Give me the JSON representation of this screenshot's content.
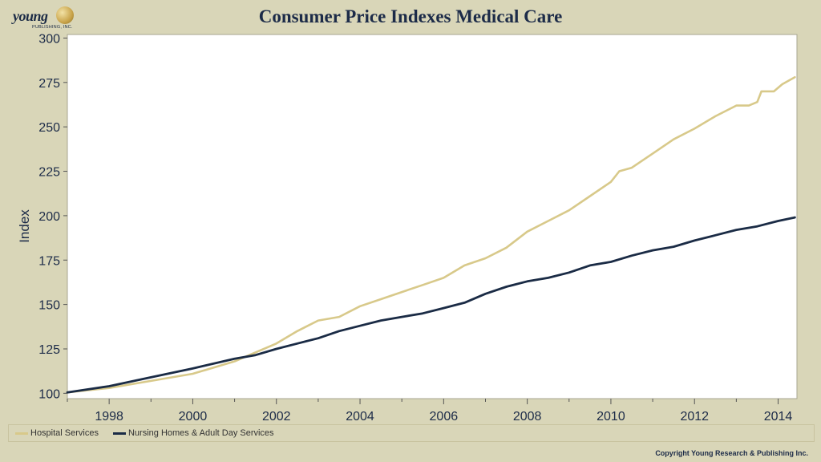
{
  "header": {
    "logo_text": "young",
    "logo_sub": "PUBLISHING, INC.",
    "title": "Consumer Price Indexes Medical Care",
    "copyright": "Copyright Young Research & Publishing Inc."
  },
  "chart_data": {
    "type": "line",
    "title": "Consumer Price Indexes Medical Care",
    "xlabel": "",
    "ylabel": "Index",
    "xlim": [
      1997.0,
      2014.45
    ],
    "ylim": [
      97,
      302
    ],
    "yticks": [
      100,
      125,
      150,
      175,
      200,
      225,
      250,
      275,
      300
    ],
    "xticks": [
      1998,
      2000,
      2002,
      2004,
      2006,
      2008,
      2010,
      2012,
      2014
    ],
    "legend": "bottom",
    "grid": false,
    "series": [
      {
        "name": "Hospital Services",
        "color": "#d8c98a",
        "x": [
          1997.0,
          1998.0,
          1999.0,
          2000.0,
          2001.0,
          2002.0,
          2002.5,
          2003.0,
          2003.5,
          2004.0,
          2004.5,
          2005.0,
          2005.5,
          2006.0,
          2006.5,
          2007.0,
          2007.5,
          2008.0,
          2008.5,
          2009.0,
          2009.5,
          2010.0,
          2010.2,
          2010.5,
          2011.0,
          2011.5,
          2012.0,
          2012.5,
          2013.0,
          2013.3,
          2013.5,
          2013.6,
          2013.7,
          2013.9,
          2014.1,
          2014.4
        ],
        "y": [
          100.5,
          103,
          107,
          111,
          118,
          128,
          135,
          141,
          143,
          149,
          153,
          157,
          161,
          165,
          172,
          176,
          182,
          191,
          197,
          203,
          211,
          219,
          225,
          227,
          235,
          243,
          249,
          256,
          262,
          262,
          264,
          270,
          270,
          270,
          274,
          278
        ]
      },
      {
        "name": "Nursing Homes & Adult Day Services",
        "color": "#1a2b45",
        "x": [
          1997.0,
          1998.0,
          1999.0,
          2000.0,
          2001.0,
          2001.5,
          2002.0,
          2002.5,
          2003.0,
          2003.5,
          2004.0,
          2004.5,
          2005.0,
          2005.5,
          2006.0,
          2006.5,
          2007.0,
          2007.5,
          2008.0,
          2008.5,
          2009.0,
          2009.5,
          2010.0,
          2010.5,
          2011.0,
          2011.5,
          2012.0,
          2012.5,
          2013.0,
          2013.5,
          2014.0,
          2014.4
        ],
        "y": [
          100.5,
          104,
          109,
          114,
          119.5,
          121.5,
          125,
          128,
          131,
          135,
          138,
          141,
          143,
          145,
          148,
          151,
          156,
          160,
          163,
          165,
          168,
          172,
          174,
          177.5,
          180.5,
          182.5,
          186,
          189,
          192,
          194,
          197,
          199
        ]
      }
    ]
  }
}
